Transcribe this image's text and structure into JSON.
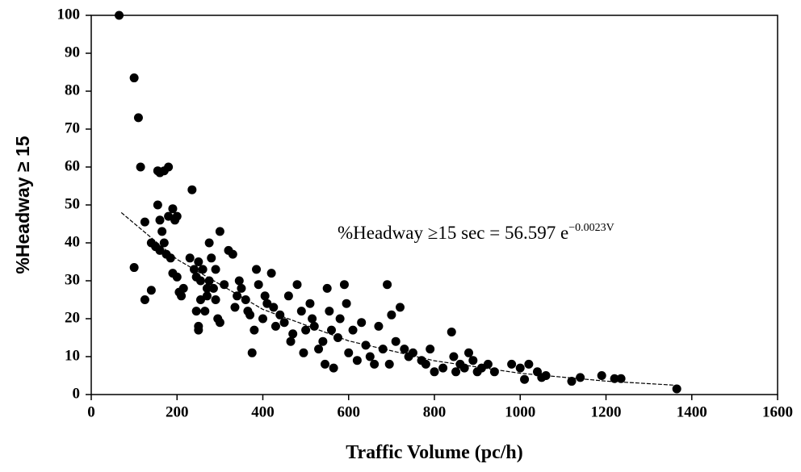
{
  "chart_data": {
    "type": "scatter",
    "xlabel": "Traffic Volume (pc/h)",
    "ylabel": "%Headway ≥ 15",
    "annotation": {
      "text": "%Headway ≥15 sec = 56.597 e",
      "superscript": "−0.0023V"
    },
    "xlim": [
      0,
      1600
    ],
    "xticks": [
      0,
      200,
      400,
      600,
      800,
      1000,
      1200,
      1400,
      1600
    ],
    "ylim": [
      0,
      100
    ],
    "yticks": [
      0,
      10,
      20,
      30,
      40,
      50,
      60,
      70,
      80,
      90,
      100
    ],
    "grid": false,
    "series": [
      {
        "color": "#000000",
        "x": [
          65,
          100,
          110,
          115,
          100,
          125,
          140,
          125,
          140,
          155,
          160,
          170,
          180,
          155,
          160,
          165,
          170,
          150,
          160,
          175,
          185,
          190,
          195,
          200,
          180,
          190,
          200,
          205,
          210,
          215,
          235,
          230,
          240,
          245,
          250,
          255,
          260,
          270,
          275,
          280,
          290,
          300,
          245,
          250,
          250,
          255,
          265,
          270,
          275,
          285,
          290,
          295,
          300,
          310,
          320,
          330,
          335,
          340,
          345,
          350,
          360,
          365,
          370,
          375,
          380,
          385,
          390,
          400,
          405,
          410,
          420,
          425,
          430,
          440,
          450,
          460,
          465,
          470,
          480,
          490,
          495,
          500,
          510,
          515,
          520,
          530,
          540,
          545,
          550,
          555,
          560,
          565,
          575,
          580,
          590,
          595,
          600,
          610,
          620,
          630,
          640,
          650,
          660,
          670,
          680,
          690,
          695,
          700,
          710,
          720,
          730,
          740,
          750,
          770,
          780,
          790,
          800,
          820,
          840,
          845,
          850,
          860,
          870,
          880,
          890,
          900,
          910,
          925,
          940,
          980,
          1000,
          1010,
          1020,
          1040,
          1050,
          1060,
          1120,
          1140,
          1190,
          1220,
          1235,
          1365
        ],
        "values": [
          100,
          83.5,
          73,
          60,
          33.5,
          25,
          27.5,
          45.5,
          40,
          59,
          58.5,
          59,
          60,
          50,
          46,
          43,
          40,
          39,
          38,
          37,
          36,
          49,
          46,
          47,
          47,
          32,
          31,
          27,
          26,
          28,
          54,
          36,
          33,
          31,
          35,
          30,
          33,
          28,
          40,
          36,
          33,
          43,
          22,
          18,
          17,
          25,
          22,
          26,
          30,
          28,
          25,
          20,
          19,
          29,
          38,
          37,
          23,
          26,
          30,
          28,
          25,
          22,
          21,
          11,
          17,
          33,
          29,
          20,
          26,
          24,
          32,
          23,
          18,
          21,
          19,
          26,
          14,
          16,
          29,
          22,
          11,
          17,
          24,
          20,
          18,
          12,
          14,
          8,
          28,
          22,
          17,
          7,
          15,
          20,
          29,
          24,
          11,
          17,
          9,
          19,
          13,
          10,
          8,
          18,
          12,
          29,
          8,
          21,
          14,
          23,
          12,
          10,
          11,
          9,
          8,
          12,
          6,
          7,
          16.5,
          10,
          6,
          8,
          7,
          11,
          9,
          6,
          7,
          8,
          6,
          8,
          7,
          4,
          8,
          6,
          4.5,
          5,
          3.5,
          4.5,
          5,
          4.2,
          4.2,
          1.5
        ]
      },
      {
        "type": "line",
        "color": "#000000",
        "x": [
          70,
          200,
          400,
          600,
          800,
          1000,
          1200,
          1360
        ],
        "values": [
          48,
          35.65,
          22.46,
          14.15,
          8.91,
          5.61,
          3.54,
          2.47
        ]
      }
    ]
  }
}
